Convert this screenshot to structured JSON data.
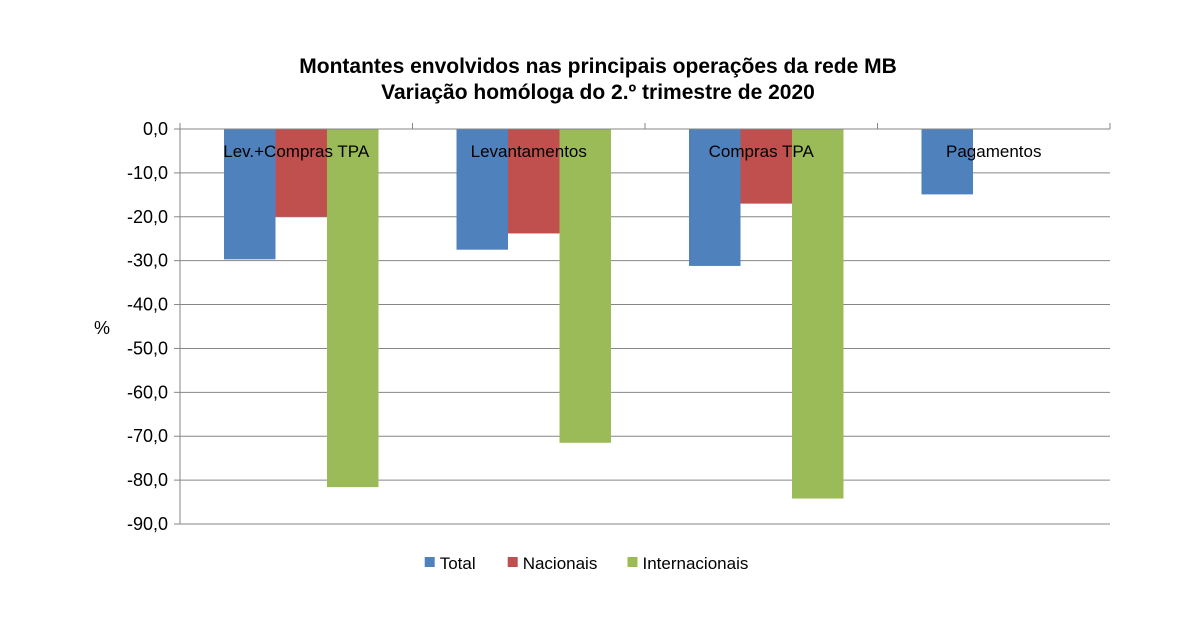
{
  "chart_data": {
    "type": "bar",
    "title": "Montantes envolvidos nas principais operações da rede MB",
    "subtitle": "Variação homóloga do 2.º trimestre de 2020",
    "xlabel": "",
    "ylabel": "%",
    "categories": [
      "Lev.+Compras TPA",
      "Levantamentos",
      "Compras TPA",
      "Pagamentos"
    ],
    "series": [
      {
        "name": "Total",
        "color": "#4F81BD",
        "values": [
          -29.7,
          -27.5,
          -31.2,
          -14.9
        ]
      },
      {
        "name": "Nacionais",
        "color": "#C0504D",
        "values": [
          -20.0,
          -23.8,
          -17.0,
          null
        ]
      },
      {
        "name": "Internacionais",
        "color": "#9BBB59",
        "values": [
          -81.6,
          -71.5,
          -84.2,
          null
        ]
      }
    ],
    "ylim": [
      -90,
      0
    ],
    "yticks": [
      0,
      -10,
      -20,
      -30,
      -40,
      -50,
      -60,
      -70,
      -80,
      -90
    ],
    "ytick_labels": [
      "0,0",
      "-10,0",
      "-20,0",
      "-30,0",
      "-40,0",
      "-50,0",
      "-60,0",
      "-70,0",
      "-80,0",
      "-90,0"
    ],
    "grid": true,
    "legend_position": "bottom"
  }
}
